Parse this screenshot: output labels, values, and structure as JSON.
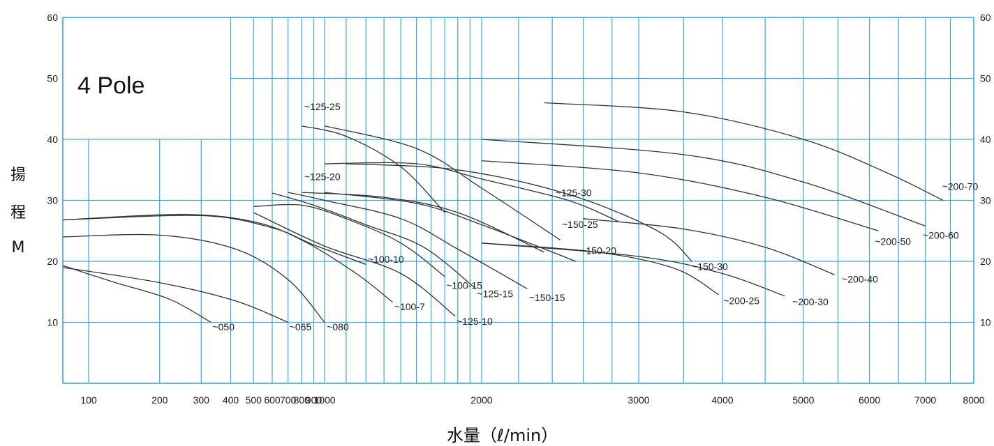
{
  "chart_data": {
    "type": "line",
    "title": "4 Pole",
    "xlabel": "水量（ℓ/min）",
    "ylabel_lines": [
      "揚",
      "程",
      "M"
    ],
    "x_scale": "log",
    "xlim": [
      0,
      8000
    ],
    "ylim": [
      0,
      60
    ],
    "x_ticks": [
      100,
      200,
      300,
      400,
      500,
      600,
      700,
      800,
      900,
      1000,
      2000,
      3000,
      4000,
      5000,
      6000,
      7000,
      8000
    ],
    "y_ticks": [
      10,
      20,
      30,
      40,
      50,
      60
    ],
    "right_tick_labels": [
      "10",
      "20",
      "30",
      "40",
      "50",
      "60"
    ],
    "grid": true,
    "colors": {
      "grid": "#3aa6dd",
      "curve": "#333333",
      "text": "#1a1a1a"
    },
    "series": [
      {
        "name": "~050",
        "x": [
          0,
          130,
          220,
          330
        ],
        "y": [
          19.3,
          16.5,
          13.8,
          10.0
        ],
        "label_pos": [
          335,
          8.7
        ]
      },
      {
        "name": "~065",
        "x": [
          0,
          200,
          420,
          700
        ],
        "y": [
          19.0,
          16.5,
          13.5,
          10.0
        ],
        "label_pos": [
          710,
          8.7
        ]
      },
      {
        "name": "~080",
        "x": [
          0,
          200,
          420,
          700,
          1000
        ],
        "y": [
          24.0,
          24.3,
          22.0,
          17.0,
          10.0
        ],
        "label_pos": [
          1010,
          8.7
        ]
      },
      {
        "name": "~100-7",
        "x": [
          0,
          250,
          500,
          800,
          1150,
          1350
        ],
        "y": [
          26.8,
          27.7,
          26.5,
          23.5,
          18.0,
          13.3
        ],
        "label_pos": [
          1360,
          12.0
        ]
      },
      {
        "name": "~100-10",
        "x": [
          0,
          300,
          600,
          900,
          1200
        ],
        "y": [
          26.8,
          27.5,
          25.5,
          22.7,
          19.5
        ],
        "label_pos": [
          1210,
          19.8
        ]
      },
      {
        "name": "~125-10",
        "x": [
          500,
          1000,
          1400,
          1780
        ],
        "y": [
          28.0,
          22.5,
          18.0,
          11.0
        ],
        "label_pos": [
          1790,
          9.6
        ]
      },
      {
        "name": "~100-15",
        "x": [
          500,
          800,
          1100,
          1400,
          1700
        ],
        "y": [
          29.0,
          29.2,
          27.0,
          23.0,
          17.5
        ],
        "label_pos": [
          1710,
          15.5
        ]
      },
      {
        "name": "~125-15",
        "x": [
          600,
          900,
          1200,
          1550,
          1950
        ],
        "y": [
          31.2,
          29.2,
          26.0,
          22.3,
          15.5
        ],
        "label_pos": [
          1960,
          14.1
        ]
      },
      {
        "name": "~150-15",
        "x": [
          700,
          1000,
          1400,
          1800,
          2250
        ],
        "y": [
          31.3,
          30.0,
          27.0,
          22.0,
          15.5
        ],
        "label_pos": [
          2260,
          13.5
        ]
      },
      {
        "name": "~125-20",
        "x": [
          800,
          1300,
          1800,
          2350
        ],
        "y": [
          31.3,
          30.5,
          28.0,
          21.5
        ],
        "label_pos": [
          820,
          33.3
        ]
      },
      {
        "name": "~150-20",
        "x": [
          1000,
          1500,
          2000,
          2550
        ],
        "y": [
          31.3,
          29.5,
          26.0,
          20.0
        ],
        "label_pos": [
          2580,
          21.2
        ]
      },
      {
        "name": "~125-25",
        "x": [
          800,
          1100,
          1400,
          1700
        ],
        "y": [
          42.2,
          40.5,
          35.5,
          28.0
        ],
        "label_pos": [
          820,
          44.8
        ]
      },
      {
        "name": "~150-25",
        "x": [
          1000,
          1500,
          2000,
          2450
        ],
        "y": [
          42.2,
          38.5,
          32.0,
          23.5
        ],
        "label_pos": [
          2460,
          25.5
        ]
      },
      {
        "name": "~125-30",
        "x": [
          1000,
          1500,
          2000,
          2500,
          2850
        ],
        "y": [
          36.0,
          36.0,
          33.5,
          30.0,
          26.5
        ],
        "label_pos": [
          2420,
          30.7
        ]
      },
      {
        "name": "~150-30",
        "x": [
          1100,
          1800,
          2500,
          3200,
          3600
        ],
        "y": [
          36.0,
          35.0,
          31.0,
          25.0,
          20.0
        ],
        "label_pos": [
          3600,
          18.6
        ]
      },
      {
        "name": "~200-25",
        "x": [
          2000,
          2700,
          3400,
          3950
        ],
        "y": [
          23.0,
          21.5,
          18.8,
          14.5
        ],
        "label_pos": [
          4010,
          13.0
        ]
      },
      {
        "name": "~200-30",
        "x": [
          2000,
          3000,
          4000,
          4750
        ],
        "y": [
          23.0,
          20.8,
          18.0,
          14.3
        ],
        "label_pos": [
          4850,
          12.8
        ]
      },
      {
        "name": "~200-40",
        "x": [
          2600,
          3500,
          4500,
          5450
        ],
        "y": [
          27.0,
          25.3,
          22.3,
          17.8
        ],
        "label_pos": [
          5560,
          16.5
        ]
      },
      {
        "name": "~200-50",
        "x": [
          2000,
          3000,
          4500,
          6150
        ],
        "y": [
          36.5,
          34.5,
          30.5,
          25.0
        ],
        "label_pos": [
          6090,
          22.7
        ]
      },
      {
        "name": "~200-60",
        "x": [
          2000,
          3500,
          5000,
          7000
        ],
        "y": [
          40.0,
          37.5,
          33.0,
          25.8
        ],
        "label_pos": [
          6950,
          23.7
        ]
      },
      {
        "name": "~200-70",
        "x": [
          2350,
          3500,
          5000,
          6300,
          7350
        ],
        "y": [
          46.0,
          44.5,
          40.0,
          34.5,
          30.0
        ],
        "label_pos": [
          7330,
          31.7
        ]
      }
    ]
  }
}
